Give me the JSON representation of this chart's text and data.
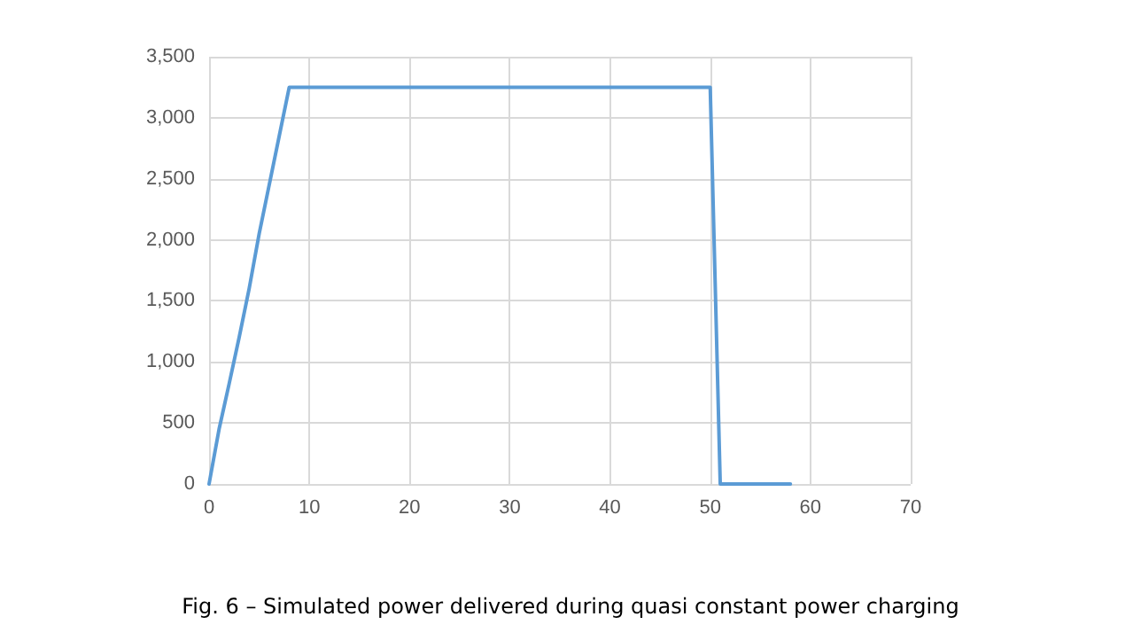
{
  "chart_data": {
    "type": "line",
    "title": "Fig. 6 – Simulated power delivered during quasi constant power charging",
    "x": [
      0,
      1,
      2,
      3,
      4,
      5,
      6,
      7,
      8,
      50,
      51,
      58
    ],
    "series": [
      {
        "color": "#5b9bd5",
        "values": [
          0,
          450,
          820,
          1200,
          1600,
          2050,
          2450,
          2850,
          3250,
          3250,
          0,
          0
        ]
      }
    ],
    "xlim": [
      0,
      70
    ],
    "xticks": [
      0,
      10,
      20,
      30,
      40,
      50,
      60,
      70
    ],
    "ylim": [
      0,
      3500
    ],
    "yticks": [
      {
        "value": 0,
        "label": "0"
      },
      {
        "value": 500,
        "label": "500"
      },
      {
        "value": 1000,
        "label": "1,000"
      },
      {
        "value": 1500,
        "label": "1,500"
      },
      {
        "value": 2000,
        "label": "2,000"
      },
      {
        "value": 2500,
        "label": "2,500"
      },
      {
        "value": 3000,
        "label": "3,000"
      },
      {
        "value": 3500,
        "label": "3,500"
      }
    ],
    "grid": true,
    "marker": "none",
    "line_style": "solid"
  }
}
